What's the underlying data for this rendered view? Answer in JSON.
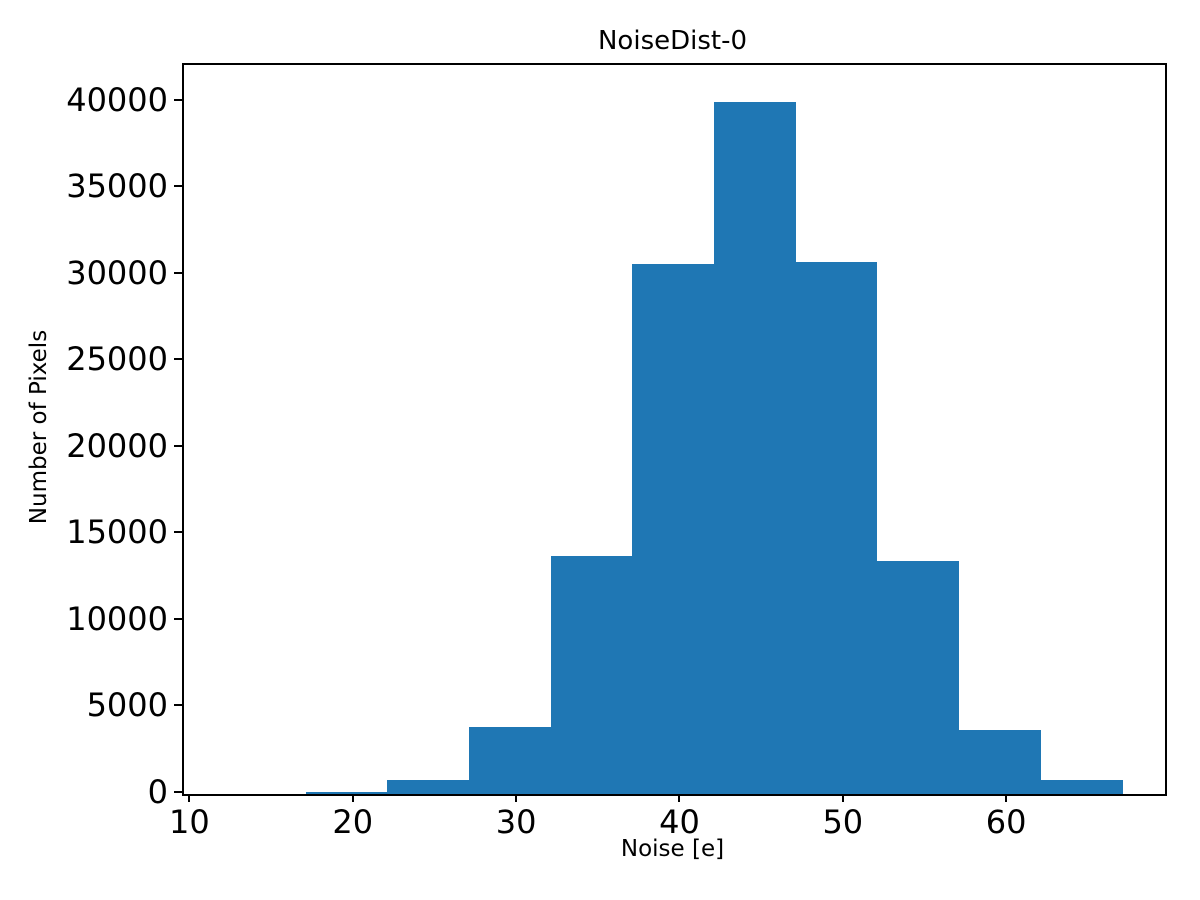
{
  "chart_data": {
    "type": "bar",
    "subtype": "histogram",
    "title": "NoiseDist-0",
    "xlabel": "Noise [e]",
    "ylabel": "Number of Pixels",
    "bin_edges": [
      17,
      22,
      27,
      32,
      37,
      42,
      47,
      52,
      57,
      62,
      67
    ],
    "values": [
      130,
      800,
      3890,
      13760,
      30600,
      39950,
      30730,
      13470,
      3710,
      830
    ],
    "x_ticks": [
      10,
      20,
      30,
      40,
      50,
      60
    ],
    "y_ticks": [
      0,
      5000,
      10000,
      15000,
      20000,
      25000,
      30000,
      35000,
      40000
    ],
    "xlim": [
      9.55,
      69.6
    ],
    "ylim": [
      0,
      42110
    ],
    "bar_color": "#1f77b4",
    "axis_color": "#000000",
    "background_color": "#ffffff",
    "grid": false,
    "legend": null
  }
}
